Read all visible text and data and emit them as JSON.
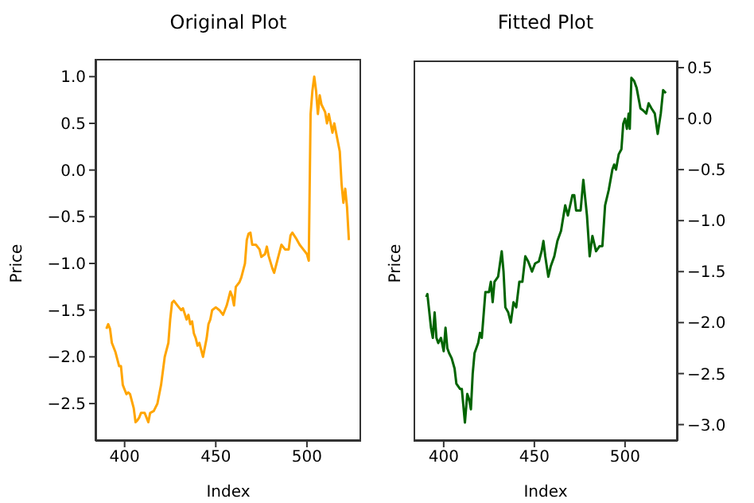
{
  "chart_data": [
    {
      "type": "line",
      "title": "Original Plot",
      "xlabel": "Index",
      "ylabel": "Price",
      "xlim": [
        384,
        529.7
      ],
      "ylim": [
        -2.9,
        1.19
      ],
      "xticks": [
        400,
        450,
        500
      ],
      "yticks": [
        {
          "value": -2.5,
          "label": "−2.5"
        },
        {
          "value": -2.0,
          "label": "−2.0"
        },
        {
          "value": -1.5,
          "label": "−1.5"
        },
        {
          "value": -1.0,
          "label": "−1.0"
        },
        {
          "value": -0.5,
          "label": "−0.5"
        },
        {
          "value": 0.0,
          "label": "0.0"
        },
        {
          "value": 0.5,
          "label": "0.5"
        },
        {
          "value": 1.0,
          "label": "1.0"
        }
      ],
      "marker": "none",
      "x": [
        390,
        391,
        392,
        393,
        395,
        397,
        398,
        399,
        400,
        401,
        402,
        403,
        405,
        406,
        407,
        408,
        409,
        411,
        412,
        413,
        414,
        416,
        418,
        420,
        422,
        424,
        425,
        426,
        427,
        429,
        431,
        432,
        434,
        435,
        436,
        437,
        438,
        439,
        440,
        441,
        443,
        445,
        446,
        447,
        448,
        450,
        452,
        454,
        456,
        458,
        459,
        460,
        461,
        463,
        464,
        466,
        467,
        468,
        469,
        470,
        472,
        474,
        475,
        477,
        478,
        479,
        481,
        482,
        484,
        486,
        488,
        490,
        491,
        492,
        494,
        496,
        498,
        500,
        501,
        502,
        503,
        504,
        505,
        506,
        507,
        508,
        510,
        511,
        512,
        513,
        514,
        515,
        516,
        518,
        519,
        520,
        521,
        522,
        523
      ],
      "series": [
        {
          "color": "#ffa500",
          "values": [
            -1.7,
            -1.65,
            -1.7,
            -1.85,
            -1.95,
            -2.1,
            -2.1,
            -2.3,
            -2.35,
            -2.4,
            -2.38,
            -2.4,
            -2.55,
            -2.7,
            -2.68,
            -2.65,
            -2.6,
            -2.6,
            -2.65,
            -2.7,
            -2.6,
            -2.58,
            -2.5,
            -2.3,
            -2.0,
            -1.85,
            -1.6,
            -1.42,
            -1.4,
            -1.45,
            -1.5,
            -1.48,
            -1.6,
            -1.55,
            -1.65,
            -1.62,
            -1.75,
            -1.8,
            -1.88,
            -1.85,
            -2.0,
            -1.8,
            -1.65,
            -1.6,
            -1.5,
            -1.47,
            -1.5,
            -1.55,
            -1.45,
            -1.3,
            -1.35,
            -1.45,
            -1.25,
            -1.2,
            -1.15,
            -1.0,
            -0.75,
            -0.68,
            -0.67,
            -0.8,
            -0.8,
            -0.85,
            -0.93,
            -0.9,
            -0.82,
            -0.92,
            -1.05,
            -1.1,
            -0.95,
            -0.8,
            -0.85,
            -0.85,
            -0.7,
            -0.67,
            -0.73,
            -0.8,
            -0.85,
            -0.9,
            -0.97,
            0.6,
            0.85,
            1.0,
            0.85,
            0.6,
            0.8,
            0.7,
            0.62,
            0.5,
            0.6,
            0.5,
            0.4,
            0.5,
            0.4,
            0.2,
            -0.15,
            -0.35,
            -0.2,
            -0.4,
            -0.75
          ]
        }
      ]
    },
    {
      "type": "line",
      "title": "Fitted Plot",
      "xlabel": "Index",
      "ylabel": "Price",
      "xlim": [
        383.4,
        529
      ],
      "y2lim": [
        -3.16,
        0.57
      ],
      "xticks": [
        400,
        450,
        500
      ],
      "y2ticks": [
        {
          "value": -3.0,
          "label": "−3.0"
        },
        {
          "value": -2.5,
          "label": "−2.5"
        },
        {
          "value": -2.0,
          "label": "−2.0"
        },
        {
          "value": -1.5,
          "label": "−1.5"
        },
        {
          "value": -1.0,
          "label": "−1.0"
        },
        {
          "value": -0.5,
          "label": "−0.5"
        },
        {
          "value": 0.0,
          "label": "0.0"
        },
        {
          "value": 0.5,
          "label": "0.5"
        }
      ],
      "marker": "none",
      "x": [
        390.4,
        391,
        393,
        394,
        395,
        396,
        397,
        398.5,
        400,
        401,
        402,
        403,
        404.4,
        406,
        407,
        409,
        410,
        411.7,
        413,
        414,
        415,
        416,
        417,
        419,
        420,
        421,
        423,
        425,
        426,
        427,
        428,
        430,
        432,
        433,
        434,
        435.6,
        437,
        438.5,
        440,
        441.7,
        443.4,
        445,
        446.6,
        448.7,
        450.4,
        452.5,
        454,
        455,
        456,
        457.7,
        459,
        461,
        462.7,
        464.7,
        467,
        468.5,
        471,
        472,
        473,
        475.5,
        477,
        479,
        480.5,
        482,
        484,
        486,
        487.5,
        489,
        491,
        493,
        494,
        495,
        496.5,
        498,
        499,
        500,
        501,
        502,
        502.6,
        503.5,
        505,
        506.4,
        508.5,
        510,
        511.7,
        513,
        514.6,
        516.4,
        518,
        519.7,
        521,
        522.5
      ],
      "series": [
        {
          "axis": "y2",
          "color": "#006400",
          "values": [
            -1.75,
            -1.72,
            -2.05,
            -2.15,
            -1.9,
            -2.15,
            -2.2,
            -2.15,
            -2.28,
            -2.05,
            -2.25,
            -2.3,
            -2.35,
            -2.45,
            -2.6,
            -2.65,
            -2.65,
            -2.98,
            -2.7,
            -2.75,
            -2.85,
            -2.5,
            -2.3,
            -2.2,
            -2.1,
            -2.15,
            -1.7,
            -1.7,
            -1.6,
            -1.8,
            -1.6,
            -1.55,
            -1.3,
            -1.5,
            -1.85,
            -1.9,
            -2.0,
            -1.8,
            -1.85,
            -1.6,
            -1.6,
            -1.35,
            -1.4,
            -1.5,
            -1.42,
            -1.4,
            -1.3,
            -1.2,
            -1.35,
            -1.55,
            -1.45,
            -1.35,
            -1.2,
            -1.1,
            -0.85,
            -0.95,
            -0.75,
            -0.75,
            -0.9,
            -0.9,
            -0.6,
            -0.95,
            -1.35,
            -1.15,
            -1.3,
            -1.25,
            -1.25,
            -0.85,
            -0.7,
            -0.5,
            -0.45,
            -0.5,
            -0.35,
            -0.3,
            -0.05,
            0.0,
            -0.1,
            0.05,
            -0.1,
            0.4,
            0.37,
            0.3,
            0.1,
            0.08,
            0.05,
            0.15,
            0.1,
            0.05,
            -0.15,
            0.05,
            0.28,
            0.25
          ]
        }
      ]
    }
  ]
}
